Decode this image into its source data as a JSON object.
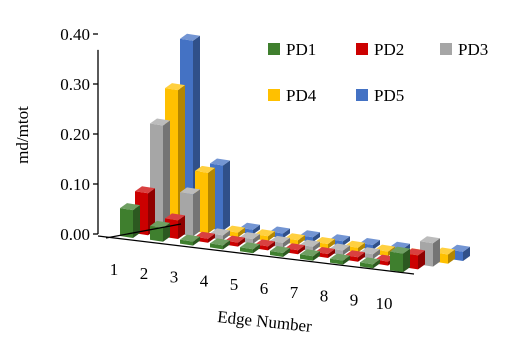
{
  "chart_data": {
    "type": "bar",
    "subtype": "3d-clustered-column",
    "title": "",
    "xlabel": "Edge Number",
    "ylabel": "md/mtot",
    "ylim": [
      0,
      0.4
    ],
    "y_ticks": [
      "0.00",
      "0.10",
      "0.20",
      "0.30",
      "0.40"
    ],
    "categories": [
      "1",
      "2",
      "3",
      "4",
      "5",
      "6",
      "7",
      "8",
      "9",
      "10"
    ],
    "legend_position": "top-right",
    "series": [
      {
        "name": "PD1",
        "color": "#3f7f2e",
        "values": [
          0.06,
          0.03,
          0.0,
          0.0,
          0.0,
          0.0,
          0.01,
          0.0,
          0.0,
          0.04
        ]
      },
      {
        "name": "PD2",
        "color": "#cc0000",
        "values": [
          0.09,
          0.04,
          0.0,
          0.0,
          0.0,
          0.0,
          0.0,
          0.01,
          0.0,
          0.03
        ]
      },
      {
        "name": "PD3",
        "color": "#a6a6a6",
        "values": [
          0.23,
          0.09,
          0.01,
          0.01,
          0.01,
          0.01,
          0.01,
          0.01,
          0.01,
          0.05
        ]
      },
      {
        "name": "PD4",
        "color": "#ffc000",
        "values": [
          0.3,
          0.13,
          0.01,
          0.01,
          0.01,
          0.01,
          0.01,
          0.01,
          0.01,
          0.02
        ]
      },
      {
        "name": "PD5",
        "color": "#4472c4",
        "values": [
          0.4,
          0.14,
          0.01,
          0.01,
          0.01,
          0.01,
          0.01,
          0.01,
          0.01,
          0.02
        ]
      }
    ]
  }
}
